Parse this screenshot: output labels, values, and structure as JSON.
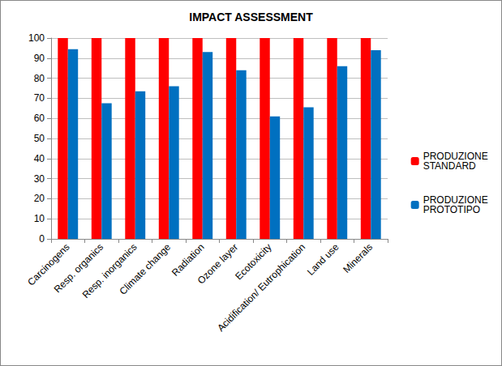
{
  "chart_data": {
    "type": "bar",
    "title": "IMPACT ASSESSMENT",
    "categories": [
      "Carcinogens",
      "Resp. organics",
      "Resp. inorganics",
      "Climate change",
      "Radiation",
      "Ozone layer",
      "Ecotoxicity",
      "Acidification/ Eutrophication",
      "Land use",
      "Minerals"
    ],
    "series": [
      {
        "name": "PRODUZIONE STANDARD",
        "color": "#ff0000",
        "values": [
          100,
          100,
          100,
          100,
          100,
          100,
          100,
          100,
          100,
          100
        ]
      },
      {
        "name": "PRODUZIONE PROTOTIPO",
        "color": "#0070c0",
        "values": [
          94.5,
          67.5,
          73.5,
          76,
          93,
          84,
          61,
          65.5,
          86,
          94
        ]
      }
    ],
    "ylim": [
      0,
      100
    ],
    "yticks": [
      0,
      10,
      20,
      30,
      40,
      50,
      60,
      70,
      80,
      90,
      100
    ],
    "grid": true,
    "legend": "right"
  }
}
